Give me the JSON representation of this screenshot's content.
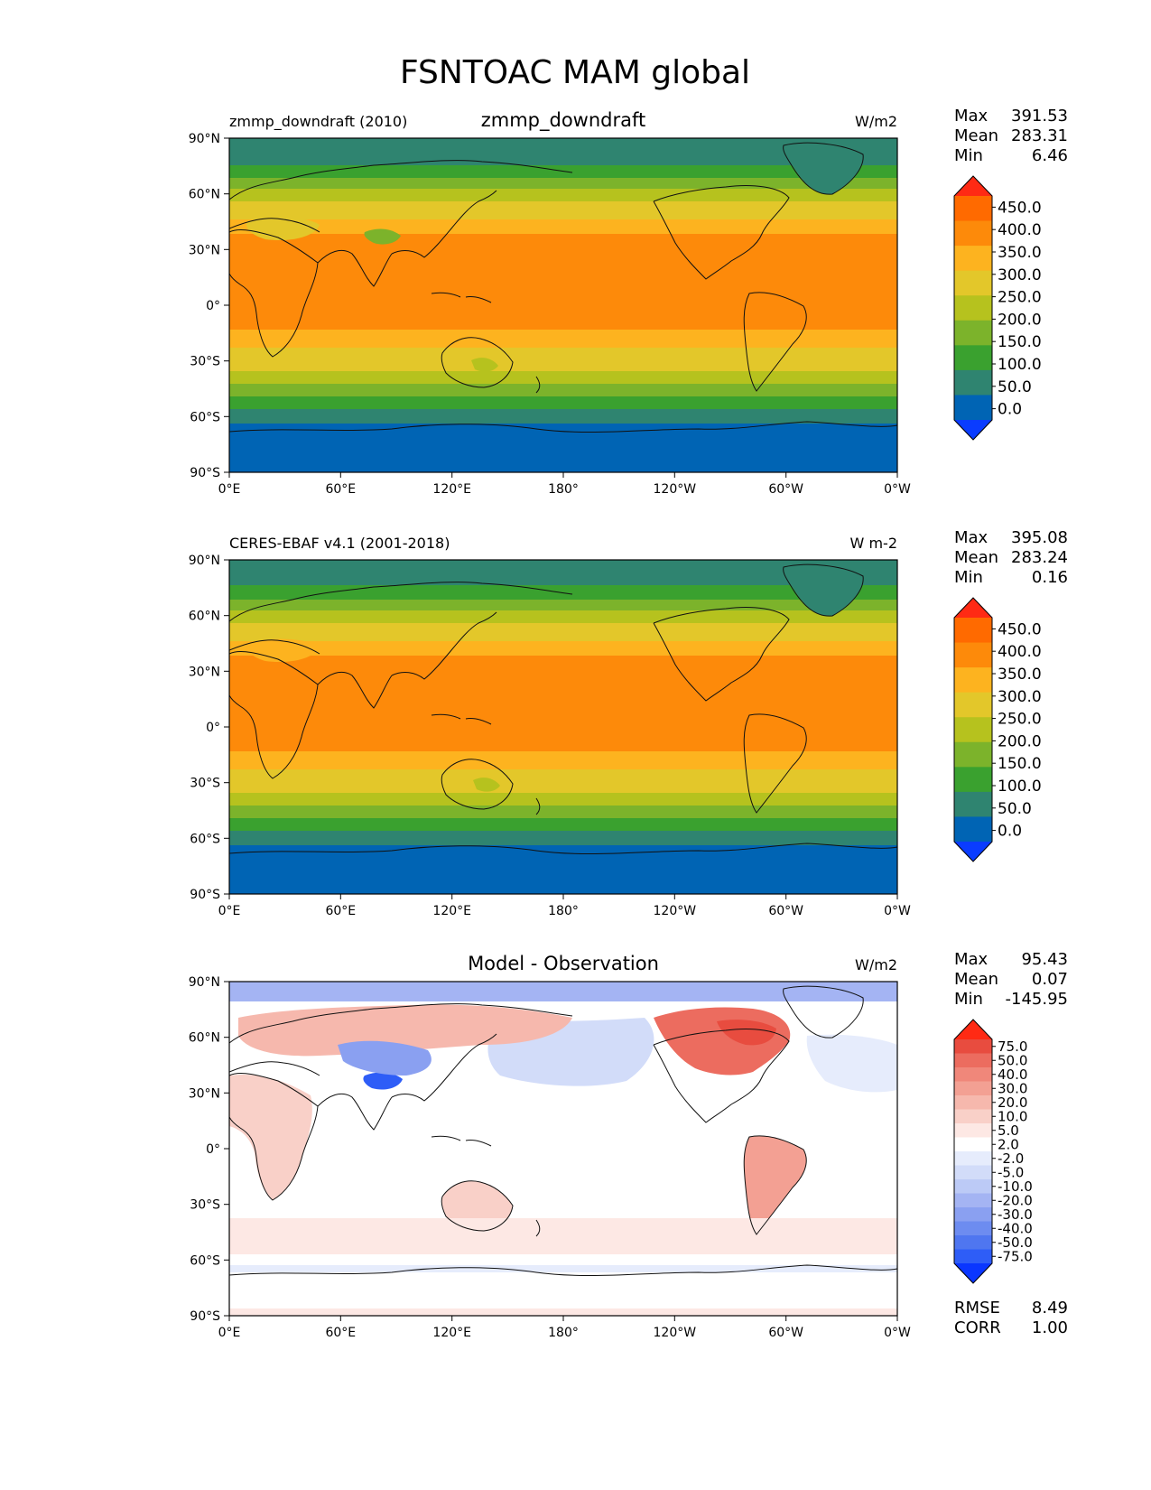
{
  "figure": {
    "title": "FSNTOAC MAM global"
  },
  "tick_labels": {
    "lat": [
      "90°N",
      "60°N",
      "30°N",
      "0°",
      "30°S",
      "60°S",
      "90°S"
    ],
    "lon": [
      "0°E",
      "60°E",
      "120°E",
      "180°",
      "120°W",
      "60°W",
      "0°W"
    ]
  },
  "colors": {
    "abs_levels": [
      "#0a3cff",
      "#0064b4",
      "#2f8470",
      "#3aa12f",
      "#7cb32b",
      "#b6c21e",
      "#e3c72a",
      "#fdb31f",
      "#fd8a0a",
      "#ff6a00",
      "#ff2a14"
    ],
    "diff_levels": [
      "#0a36ff",
      "#2e5df7",
      "#4f76f0",
      "#6d8cf0",
      "#8aa0f1",
      "#a4b4f3",
      "#bccaf6",
      "#d2dcf9",
      "#e6ecfc",
      "#ffffff",
      "#fde8e4",
      "#f9d0c8",
      "#f6b8ad",
      "#f3a093",
      "#f0877a",
      "#ec6c5f",
      "#e84c3f",
      "#ff2a14"
    ]
  },
  "chart_data": [
    {
      "type": "heatmap",
      "panel": "model",
      "title_left": "zmmp_downdraft (2010)",
      "title_center": "zmmp_downdraft",
      "units": "W/m2",
      "stats": {
        "max_label": "Max",
        "max": "391.53",
        "mean_label": "Mean",
        "mean": "283.31",
        "min_label": "Min",
        "min": "6.46"
      },
      "colorbar_levels": [
        "450.0",
        "400.0",
        "350.0",
        "300.0",
        "250.0",
        "200.0",
        "150.0",
        "100.0",
        "50.0",
        "0.0"
      ],
      "lat_range": [
        -90,
        90
      ],
      "lon_range": [
        0,
        360
      ]
    },
    {
      "type": "heatmap",
      "panel": "obs",
      "title_left": "CERES-EBAF v4.1 (2001-2018)",
      "title_center": "",
      "units": "W m-2",
      "stats": {
        "max_label": "Max",
        "max": "395.08",
        "mean_label": "Mean",
        "mean": "283.24",
        "min_label": "Min",
        "min": "0.16"
      },
      "colorbar_levels": [
        "450.0",
        "400.0",
        "350.0",
        "300.0",
        "250.0",
        "200.0",
        "150.0",
        "100.0",
        "50.0",
        "0.0"
      ],
      "lat_range": [
        -90,
        90
      ],
      "lon_range": [
        0,
        360
      ]
    },
    {
      "type": "heatmap",
      "panel": "diff",
      "title_left": "",
      "title_center": "Model - Observation",
      "units": "W/m2",
      "stats": {
        "max_label": "Max",
        "max": "95.43",
        "mean_label": "Mean",
        "mean": "0.07",
        "min_label": "Min",
        "min": "-145.95"
      },
      "colorbar_levels": [
        "75.0",
        "50.0",
        "40.0",
        "30.0",
        "20.0",
        "10.0",
        "5.0",
        "2.0",
        "-2.0",
        "-5.0",
        "-10.0",
        "-20.0",
        "-30.0",
        "-40.0",
        "-50.0",
        "-75.0"
      ],
      "rmse_label": "RMSE",
      "rmse": "8.49",
      "corr_label": "CORR",
      "corr": "1.00",
      "lat_range": [
        -90,
        90
      ],
      "lon_range": [
        0,
        360
      ]
    }
  ]
}
